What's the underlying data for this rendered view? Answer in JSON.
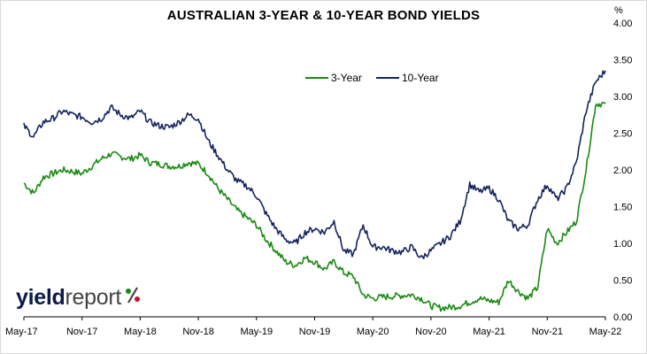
{
  "logo": {
    "part1": "yield",
    "part2": "report",
    "symbol": "%"
  },
  "chart_data": {
    "type": "line",
    "title": "AUSTRALIAN 3-YEAR & 10-YEAR BOND YIELDS",
    "unit": "%",
    "xlabel": "",
    "ylabel": "",
    "x_ticks": [
      "May-17",
      "Nov-17",
      "May-18",
      "Nov-18",
      "May-19",
      "Nov-19",
      "May-20",
      "Nov-20",
      "May-21",
      "Nov-21",
      "May-22"
    ],
    "x_range": [
      "2017-05",
      "2022-05"
    ],
    "ylim": [
      0,
      4
    ],
    "y_ticks": [
      "0.00",
      "0.50",
      "1.00",
      "1.50",
      "2.00",
      "2.50",
      "3.00",
      "3.50",
      "4.00"
    ],
    "y_axis_side": "right",
    "grid": false,
    "legend_position": "top-center",
    "colors": {
      "three_year": "#1a8a12",
      "ten_year": "#14235e"
    },
    "x_points": [
      "2017-05",
      "2017-06",
      "2017-07",
      "2017-08",
      "2017-09",
      "2017-10",
      "2017-11",
      "2017-12",
      "2018-01",
      "2018-02",
      "2018-03",
      "2018-04",
      "2018-05",
      "2018-06",
      "2018-07",
      "2018-08",
      "2018-09",
      "2018-10",
      "2018-11",
      "2018-12",
      "2019-01",
      "2019-02",
      "2019-03",
      "2019-04",
      "2019-05",
      "2019-06",
      "2019-07",
      "2019-08",
      "2019-09",
      "2019-10",
      "2019-11",
      "2019-12",
      "2020-01",
      "2020-02",
      "2020-03",
      "2020-04",
      "2020-05",
      "2020-06",
      "2020-07",
      "2020-08",
      "2020-09",
      "2020-10",
      "2020-11",
      "2020-12",
      "2021-01",
      "2021-02",
      "2021-03",
      "2021-04",
      "2021-05",
      "2021-06",
      "2021-07",
      "2021-08",
      "2021-09",
      "2021-10",
      "2021-11",
      "2021-12",
      "2022-01",
      "2022-02",
      "2022-03",
      "2022-04",
      "2022-05"
    ],
    "series": [
      {
        "name": "3-Year",
        "values": [
          1.82,
          1.68,
          1.9,
          1.95,
          2.0,
          1.98,
          1.95,
          2.05,
          2.15,
          2.22,
          2.18,
          2.15,
          2.2,
          2.1,
          2.08,
          2.05,
          2.05,
          2.1,
          2.08,
          1.95,
          1.75,
          1.6,
          1.45,
          1.35,
          1.25,
          1.05,
          0.9,
          0.75,
          0.7,
          0.8,
          0.75,
          0.65,
          0.75,
          0.6,
          0.55,
          0.3,
          0.25,
          0.27,
          0.28,
          0.29,
          0.3,
          0.25,
          0.15,
          0.12,
          0.13,
          0.15,
          0.2,
          0.25,
          0.22,
          0.2,
          0.5,
          0.35,
          0.25,
          0.4,
          1.2,
          1.0,
          1.15,
          1.3,
          2.0,
          2.9,
          2.9
        ]
      },
      {
        "name": "10-Year",
        "values": [
          2.6,
          2.45,
          2.65,
          2.7,
          2.8,
          2.75,
          2.72,
          2.65,
          2.7,
          2.85,
          2.75,
          2.7,
          2.8,
          2.65,
          2.6,
          2.58,
          2.65,
          2.75,
          2.7,
          2.4,
          2.2,
          2.0,
          1.85,
          1.78,
          1.65,
          1.4,
          1.2,
          1.05,
          1.0,
          1.15,
          1.2,
          1.15,
          1.3,
          0.9,
          0.85,
          1.25,
          0.95,
          0.95,
          0.9,
          0.88,
          0.95,
          0.8,
          0.9,
          1.0,
          1.1,
          1.3,
          1.8,
          1.7,
          1.75,
          1.6,
          1.3,
          1.2,
          1.25,
          1.6,
          1.8,
          1.6,
          1.75,
          2.1,
          2.8,
          3.2,
          3.35
        ]
      }
    ]
  }
}
